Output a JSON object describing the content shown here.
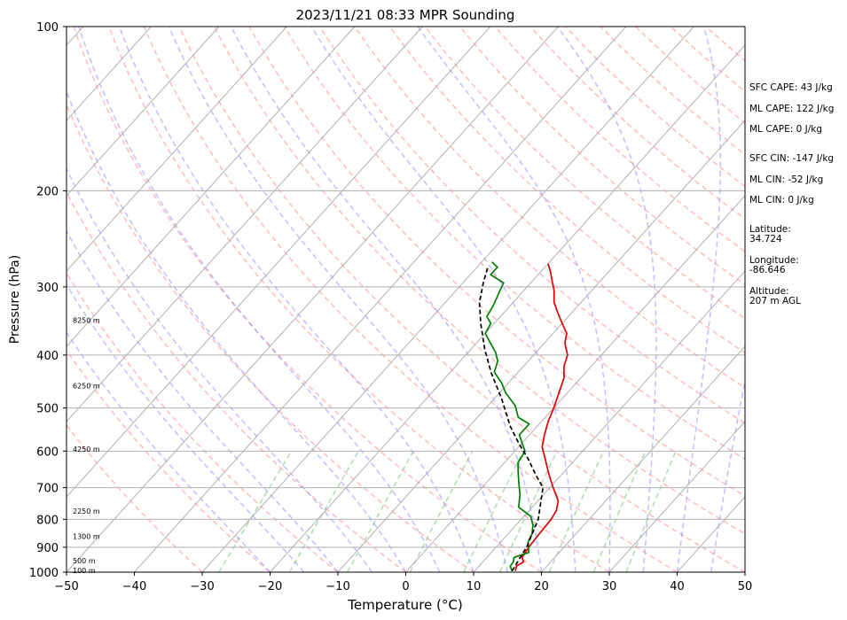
{
  "chart_data": {
    "type": "line",
    "title": "2023/11/21 08:33 MPR Sounding",
    "xlabel": "Temperature (°C)",
    "ylabel": "Pressure (hPa)",
    "xlim": [
      -50,
      50
    ],
    "ylim": [
      1000,
      100
    ],
    "yscale": "log",
    "x_ticks": [
      "−50",
      "−40",
      "−30",
      "−20",
      "−10",
      "0",
      "10",
      "20",
      "30",
      "40",
      "50"
    ],
    "y_ticks": [
      {
        "p": 100,
        "label": "100"
      },
      {
        "p": 200,
        "label": "200"
      },
      {
        "p": 300,
        "label": "300"
      },
      {
        "p": 400,
        "label": "400"
      },
      {
        "p": 500,
        "label": "500"
      },
      {
        "p": 600,
        "label": "600"
      },
      {
        "p": 700,
        "label": "700"
      },
      {
        "p": 800,
        "label": "800"
      },
      {
        "p": 900,
        "label": "900"
      },
      {
        "p": 1000,
        "label": "1000"
      }
    ],
    "height_labels": [
      {
        "p": 345,
        "label": "8250 m"
      },
      {
        "p": 455,
        "label": "6250 m"
      },
      {
        "p": 595,
        "label": "4250 m"
      },
      {
        "p": 772,
        "label": "2250 m"
      },
      {
        "p": 860,
        "label": "1300 m"
      },
      {
        "p": 953,
        "label": "500 m"
      },
      {
        "p": 993,
        "label": "100 m"
      }
    ],
    "series": [
      {
        "color": "#e00000",
        "points": [
          [
            16,
            995
          ],
          [
            15.5,
            975
          ],
          [
            16,
            958
          ],
          [
            15.2,
            940
          ],
          [
            14.8,
            900
          ],
          [
            14.6,
            850
          ],
          [
            14.4,
            800
          ],
          [
            14,
            770
          ],
          [
            13,
            740
          ],
          [
            10.5,
            700
          ],
          [
            8,
            660
          ],
          [
            5.5,
            620
          ],
          [
            3.5,
            590
          ],
          [
            2.2,
            560
          ],
          [
            1,
            530
          ],
          [
            0,
            500
          ],
          [
            -1,
            475
          ],
          [
            -2.5,
            440
          ],
          [
            -4,
            420
          ],
          [
            -5,
            400
          ],
          [
            -7,
            380
          ],
          [
            -8,
            365
          ],
          [
            -10,
            350
          ],
          [
            -12,
            335
          ],
          [
            -14,
            320
          ],
          [
            -15.5,
            305
          ],
          [
            -16.8,
            295
          ],
          [
            -18.5,
            282
          ],
          [
            -20,
            272
          ]
        ]
      },
      {
        "color": "#008000",
        "points": [
          [
            15.5,
            995
          ],
          [
            14.6,
            975
          ],
          [
            14.5,
            958
          ],
          [
            14,
            940
          ],
          [
            15.5,
            920
          ],
          [
            14,
            880
          ],
          [
            13.5,
            850
          ],
          [
            12.5,
            820
          ],
          [
            11,
            790
          ],
          [
            8,
            760
          ],
          [
            6.5,
            720
          ],
          [
            5,
            690
          ],
          [
            3.5,
            660
          ],
          [
            2,
            630
          ],
          [
            1.5,
            600
          ],
          [
            0,
            580
          ],
          [
            -1.5,
            560
          ],
          [
            -1.5,
            535
          ],
          [
            -4,
            520
          ],
          [
            -6,
            495
          ],
          [
            -9,
            470
          ],
          [
            -11,
            450
          ],
          [
            -13.5,
            430
          ],
          [
            -14.5,
            410
          ],
          [
            -16,
            395
          ],
          [
            -18,
            380
          ],
          [
            -20,
            365
          ],
          [
            -20.5,
            350
          ],
          [
            -22,
            340
          ],
          [
            -22.5,
            325
          ],
          [
            -23.5,
            305
          ],
          [
            -24,
            295
          ],
          [
            -27,
            285
          ],
          [
            -27,
            276
          ],
          [
            -28.5,
            270
          ]
        ]
      },
      {
        "color": "#000000",
        "dashed": true,
        "points": [
          [
            15.5,
            995
          ],
          [
            14.5,
            900
          ],
          [
            12.5,
            800
          ],
          [
            9,
            700
          ],
          [
            6,
            660
          ],
          [
            3,
            620
          ],
          [
            -0.5,
            580
          ],
          [
            -4,
            540
          ],
          [
            -9,
            480
          ],
          [
            -14,
            430
          ],
          [
            -18,
            390
          ],
          [
            -22,
            350
          ],
          [
            -25,
            320
          ],
          [
            -27,
            295
          ],
          [
            -28.5,
            275
          ]
        ]
      }
    ],
    "annotations": [
      {
        "key": "sfc_cape",
        "label": "SFC CAPE: 43 J/kg"
      },
      {
        "key": "ml_cape_1",
        "label": "ML CAPE: 122 J/kg"
      },
      {
        "key": "ml_cape_2",
        "label": "ML CAPE: 0 J/kg"
      },
      {
        "key": "sfc_cin",
        "label": "SFC CIN: -147 J/kg"
      },
      {
        "key": "ml_cin_1",
        "label": "ML CIN: -52 J/kg"
      },
      {
        "key": "ml_cin_2",
        "label": "ML CIN: 0 J/kg"
      },
      {
        "key": "latitude",
        "lines": [
          "Latitude:",
          "34.724"
        ]
      },
      {
        "key": "longitude",
        "lines": [
          "Longitude:",
          "-86.646"
        ]
      },
      {
        "key": "altitude",
        "lines": [
          "Altitude:",
          "207 m AGL"
        ]
      }
    ],
    "colors": {
      "isotherms": "#b0b0b0",
      "dry_adiabats": "#ff9090",
      "moist_adiabats": "#8080ff",
      "mixing_ratio": "#80c080",
      "isobars": "#b0b0b0"
    },
    "grid": true
  }
}
